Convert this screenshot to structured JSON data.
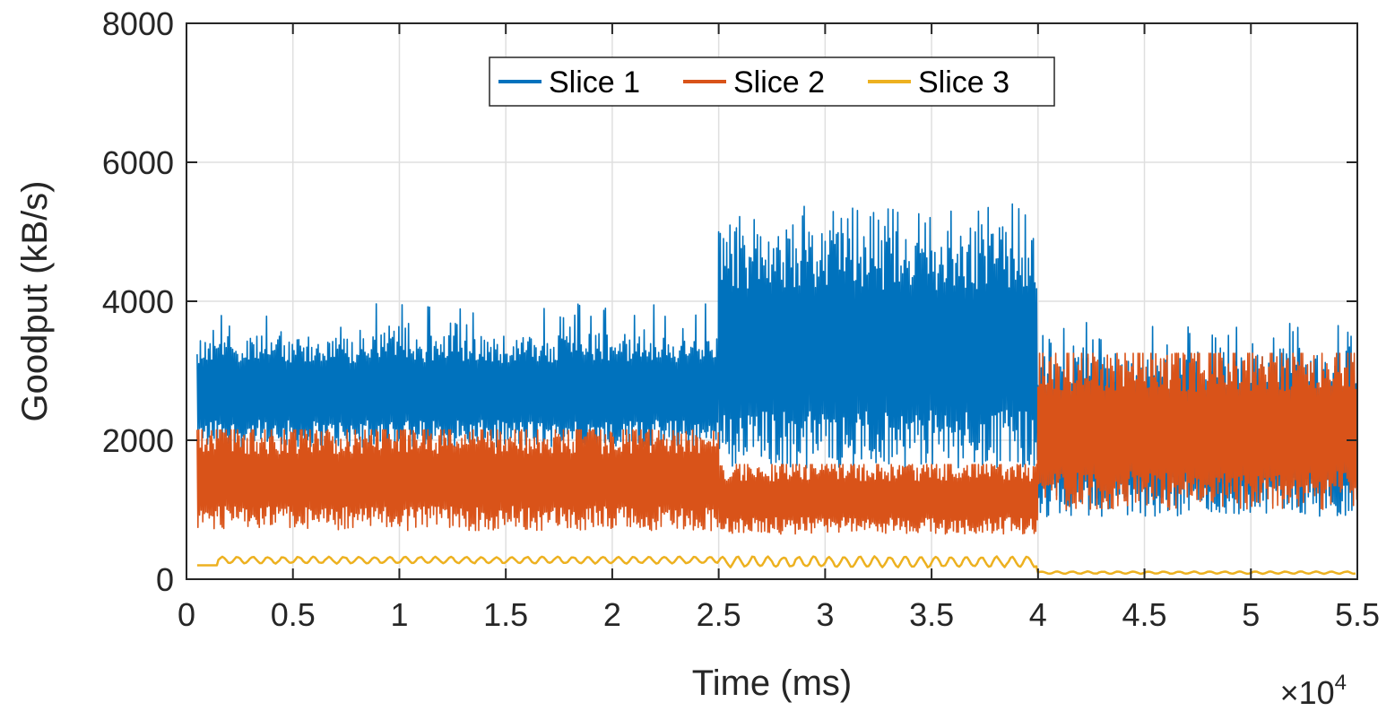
{
  "chart_data": {
    "type": "line",
    "title": "",
    "xlabel": "Time (ms)",
    "ylabel": "Goodput (kB/s)",
    "x_exponent_label": "×10",
    "x_exponent_power": "4",
    "xlim": [
      0,
      5.5
    ],
    "ylim": [
      0,
      8000
    ],
    "x_scale_factor": 10000,
    "x_ticks": [
      0,
      0.5,
      1,
      1.5,
      2,
      2.5,
      3,
      3.5,
      4,
      4.5,
      5,
      5.5
    ],
    "x_tick_labels": [
      "0",
      "0.5",
      "1",
      "1.5",
      "2",
      "2.5",
      "3",
      "3.5",
      "4",
      "4.5",
      "5",
      "5.5"
    ],
    "y_ticks": [
      0,
      2000,
      4000,
      6000,
      8000
    ],
    "y_tick_labels": [
      "0",
      "2000",
      "4000",
      "6000",
      "8000"
    ],
    "grid": true,
    "legend_position": "top-center",
    "series": [
      {
        "name": "Slice 1",
        "color": "#0072BD",
        "segments": [
          {
            "x_start": 0.05,
            "x_end": 2.5,
            "low": 1900,
            "high": 3500,
            "peak_max": 4000
          },
          {
            "x_start": 2.5,
            "x_end": 4.0,
            "low": 1600,
            "high": 5000,
            "peak_max": 5400
          },
          {
            "x_start": 4.0,
            "x_end": 5.5,
            "low": 900,
            "high": 3200,
            "peak_max": 3700
          }
        ]
      },
      {
        "name": "Slice 2",
        "color": "#D95319",
        "segments": [
          {
            "x_start": 0.05,
            "x_end": 2.5,
            "low": 700,
            "high": 2150,
            "peak_max": 2150
          },
          {
            "x_start": 2.5,
            "x_end": 4.0,
            "low": 650,
            "high": 1650,
            "peak_max": 1650
          },
          {
            "x_start": 4.0,
            "x_end": 5.5,
            "low": 1000,
            "high": 3250,
            "peak_max": 3250
          }
        ]
      },
      {
        "name": "Slice 3",
        "color": "#EDB120",
        "segments": [
          {
            "x_start": 0.05,
            "x_end": 0.15,
            "low": 200,
            "high": 200,
            "peak_max": 200
          },
          {
            "x_start": 0.15,
            "x_end": 2.5,
            "low": 230,
            "high": 320,
            "peak_max": 330
          },
          {
            "x_start": 2.5,
            "x_end": 4.0,
            "low": 180,
            "high": 320,
            "peak_max": 340
          },
          {
            "x_start": 4.0,
            "x_end": 5.5,
            "low": 80,
            "high": 110,
            "peak_max": 110
          }
        ]
      }
    ]
  }
}
